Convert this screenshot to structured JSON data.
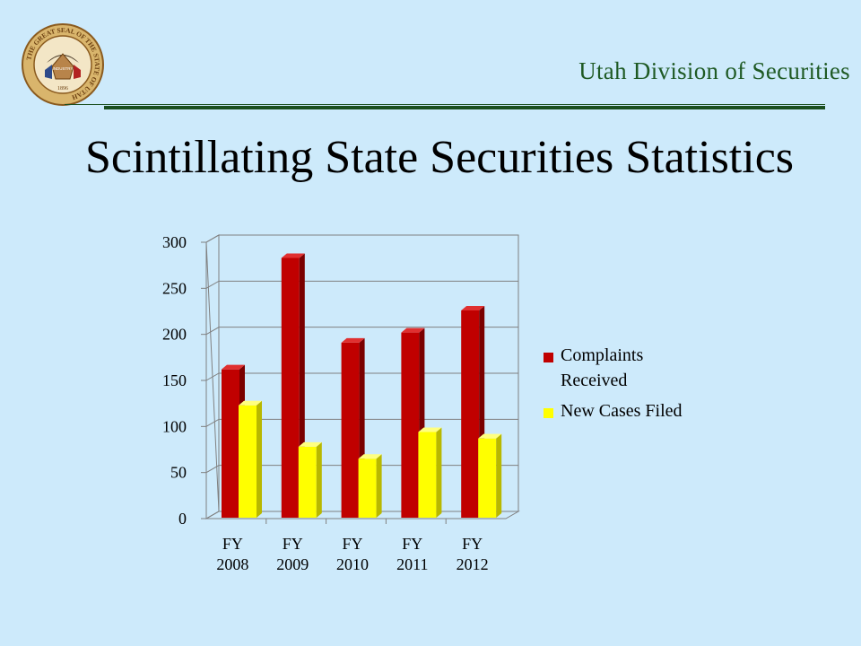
{
  "header": {
    "org_name": "Utah Division of Securities",
    "slide_title": "Scintillating State Securities Statistics",
    "seal_icon": "utah-state-seal-icon",
    "seal_text": "THE GREAT SEAL OF THE STATE OF UTAH",
    "seal_year": "1896",
    "seal_motto": "INDUSTRY"
  },
  "colors": {
    "background": "#cdeafb",
    "accent_green": "#1f5a24",
    "series_complaints": "#c00000",
    "series_cases": "#ffff00"
  },
  "chart_data": {
    "type": "bar",
    "style": "3d-clustered-column",
    "categories": [
      [
        "FY",
        "2008"
      ],
      [
        "FY",
        "2009"
      ],
      [
        "FY",
        "2010"
      ],
      [
        "FY",
        "2011"
      ],
      [
        "FY",
        "2012"
      ]
    ],
    "series": [
      {
        "name": [
          "Complaints",
          "Received"
        ],
        "values": [
          162,
          283,
          191,
          202,
          226
        ]
      },
      {
        "name": [
          "New Cases Filed"
        ],
        "values": [
          123,
          78,
          65,
          94,
          87
        ]
      }
    ],
    "ylim": [
      0,
      300
    ],
    "yticks": [
      "0",
      "50",
      "100",
      "150",
      "200",
      "250",
      "300"
    ],
    "grid": true,
    "legend_position": "right"
  }
}
